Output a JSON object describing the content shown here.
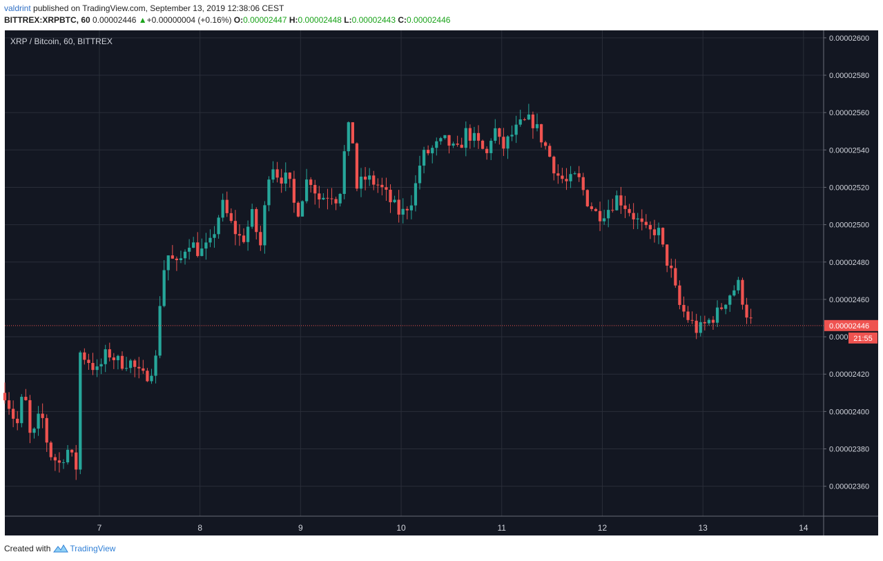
{
  "header": {
    "author": "valdrint",
    "published_text": "published on TradingView.com, September 13, 2019 12:38:06 CEST",
    "symbol": "BITTREX:XRPBTC, 60",
    "last": "0.00002446",
    "change": "+0.00000004 (+0.16%)",
    "o_label": "O:",
    "o": "0.00002447",
    "h_label": "H:",
    "h": "0.00002448",
    "l_label": "L:",
    "l": "0.00002443",
    "c_label": "C:",
    "c": "0.00002446"
  },
  "chart_title": "XRP / Bitcoin, 60, BITTREX",
  "price_label": "0.00002446",
  "countdown": "21:55",
  "footer": {
    "created_with": "Created with",
    "brand": "TradingView"
  },
  "colors": {
    "background": "#131722",
    "grid": "#2a2e39",
    "up": "#26a69a",
    "down": "#ef5350",
    "price_line": "#ef5350"
  },
  "chart_data": {
    "type": "candlestick",
    "title": "XRP / Bitcoin, 60, BITTREX",
    "y_ticks": [
      "0.00002360",
      "0.00002380",
      "0.00002400",
      "0.00002420",
      "0.00002440",
      "0.00002460",
      "0.00002480",
      "0.00002500",
      "0.00002520",
      "0.00002540",
      "0.00002560",
      "0.00002580",
      "0.00002600"
    ],
    "x_ticks": [
      "7",
      "8",
      "9",
      "10",
      "11",
      "12",
      "13",
      "14"
    ],
    "ylim": [
      2.344e-05,
      2.604e-05
    ],
    "xlim": [
      6.06,
      14.2
    ],
    "current_price": 2.446e-05,
    "path": [
      [
        6.06,
        2.41e-05
      ],
      [
        6.18,
        2.392e-05
      ],
      [
        6.25,
        2.412e-05
      ],
      [
        6.32,
        2.383e-05
      ],
      [
        6.42,
        2.4e-05
      ],
      [
        6.5,
        2.378e-05
      ],
      [
        6.6,
        2.372e-05
      ],
      [
        6.68,
        2.38e-05
      ],
      [
        6.77,
        2.37e-05
      ],
      [
        6.8,
        2.432e-05
      ],
      [
        6.9,
        2.427e-05
      ],
      [
        6.98,
        2.421e-05
      ],
      [
        7.08,
        2.432e-05
      ],
      [
        7.2,
        2.426e-05
      ],
      [
        7.3,
        2.427e-05
      ],
      [
        7.42,
        2.418e-05
      ],
      [
        7.5,
        2.421e-05
      ],
      [
        7.56,
        2.428e-05
      ],
      [
        7.62,
        2.472e-05
      ],
      [
        7.68,
        2.484e-05
      ],
      [
        7.78,
        2.477e-05
      ],
      [
        7.88,
        2.492e-05
      ],
      [
        8.0,
        2.485e-05
      ],
      [
        8.1,
        2.489e-05
      ],
      [
        8.22,
        2.511e-05
      ],
      [
        8.32,
        2.499e-05
      ],
      [
        8.42,
        2.491e-05
      ],
      [
        8.52,
        2.505e-05
      ],
      [
        8.6,
        2.488e-05
      ],
      [
        8.7,
        2.535e-05
      ],
      [
        8.78,
        2.526e-05
      ],
      [
        8.88,
        2.524e-05
      ],
      [
        8.96,
        2.505e-05
      ],
      [
        9.08,
        2.527e-05
      ],
      [
        9.18,
        2.514e-05
      ],
      [
        9.3,
        2.517e-05
      ],
      [
        9.38,
        2.513e-05
      ],
      [
        9.45,
        2.545e-05
      ],
      [
        9.5,
        2.556e-05
      ],
      [
        9.56,
        2.52e-05
      ],
      [
        9.65,
        2.525e-05
      ],
      [
        9.78,
        2.521e-05
      ],
      [
        9.9,
        2.512e-05
      ],
      [
        10.0,
        2.505e-05
      ],
      [
        10.12,
        2.515e-05
      ],
      [
        10.2,
        2.536e-05
      ],
      [
        10.35,
        2.542e-05
      ],
      [
        10.45,
        2.545e-05
      ],
      [
        10.55,
        2.538e-05
      ],
      [
        10.65,
        2.55e-05
      ],
      [
        10.75,
        2.544e-05
      ],
      [
        10.85,
        2.537e-05
      ],
      [
        10.92,
        2.553e-05
      ],
      [
        11.0,
        2.54e-05
      ],
      [
        11.1,
        2.548e-05
      ],
      [
        11.2,
        2.554e-05
      ],
      [
        11.3,
        2.556e-05
      ],
      [
        11.38,
        2.548e-05
      ],
      [
        11.45,
        2.54e-05
      ],
      [
        11.55,
        2.527e-05
      ],
      [
        11.65,
        2.522e-05
      ],
      [
        11.75,
        2.526e-05
      ],
      [
        11.85,
        2.513e-05
      ],
      [
        11.95,
        2.505e-05
      ],
      [
        12.05,
        2.508e-05
      ],
      [
        12.15,
        2.515e-05
      ],
      [
        12.25,
        2.509e-05
      ],
      [
        12.35,
        2.502e-05
      ],
      [
        12.45,
        2.495e-05
      ],
      [
        12.55,
        2.498e-05
      ],
      [
        12.6,
        2.487e-05
      ],
      [
        12.7,
        2.472e-05
      ],
      [
        12.75,
        2.458e-05
      ],
      [
        12.85,
        2.45e-05
      ],
      [
        12.95,
        2.443e-05
      ],
      [
        13.05,
        2.448e-05
      ],
      [
        13.15,
        2.453e-05
      ],
      [
        13.25,
        2.462e-05
      ],
      [
        13.35,
        2.468e-05
      ],
      [
        13.45,
        2.45e-05
      ],
      [
        13.5,
        2.446e-05
      ]
    ]
  }
}
